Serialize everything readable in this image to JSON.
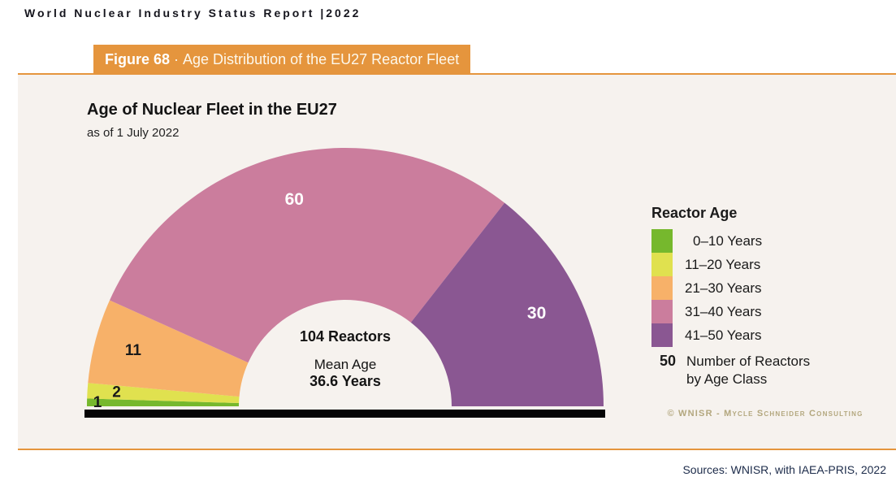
{
  "page": {
    "report_header": "World Nuclear Industry Status Report |2022",
    "sources_note": "Sources: WNISR, with IAEA-PRIS, 2022"
  },
  "figure_banner": {
    "label": "Figure 68",
    "separator": "·",
    "title": "Age Distribution of the EU27 Reactor Fleet",
    "background_color": "#E5953D"
  },
  "chart": {
    "title": "Age of Nuclear Fleet in the EU27",
    "subtitle": "as of 1 July 2022",
    "center": {
      "reactors": "104 Reactors",
      "mean_age_label": "Mean Age",
      "mean_age_value": "36.6 Years"
    },
    "copyright": "© WNISR - Mycle Schneider Consulting"
  },
  "legend": {
    "title": "Reactor Age",
    "items": [
      {
        "label": "0–10 Years",
        "color": "#76B82D"
      },
      {
        "label": "11–20 Years",
        "color": "#E0E14F"
      },
      {
        "label": "21–30 Years",
        "color": "#F7B169"
      },
      {
        "label": "31–40 Years",
        "color": "#CB7D9D"
      },
      {
        "label": "41–50 Years",
        "color": "#8A5792"
      }
    ],
    "count_key": {
      "number": "50",
      "label_line1": "Number of Reactors",
      "label_line2": "by Age Class"
    }
  },
  "chart_data": {
    "type": "pie",
    "subtype": "half-donut",
    "title": "Age of Nuclear Fleet in the EU27",
    "subtitle": "as of 1 July 2022",
    "categories": [
      "0–10 Years",
      "11–20 Years",
      "21–30 Years",
      "31–40 Years",
      "41–50 Years"
    ],
    "values": [
      1,
      2,
      11,
      60,
      30
    ],
    "colors": [
      "#76B82D",
      "#E0E14F",
      "#F7B169",
      "#CB7D9D",
      "#8A5792"
    ],
    "total_reactors": 104,
    "mean_age_years": 36.6,
    "legend_position": "right",
    "baseline_bar_color": "#050505"
  }
}
